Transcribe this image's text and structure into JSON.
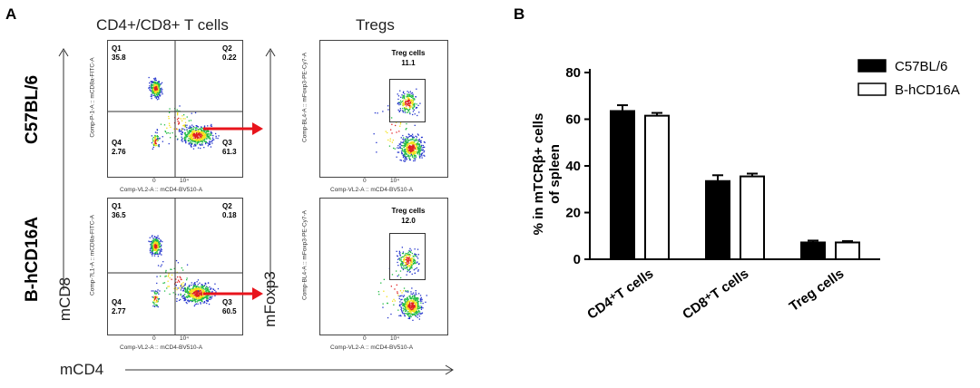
{
  "panel_a": {
    "letter": "A",
    "col_title_left": "CD4+/CD8+ T cells",
    "col_title_right": "Tregs",
    "row_labels": [
      "C57BL/6",
      "B-hCD16A"
    ],
    "axis_y_label": "mCD8",
    "axis_x_label": "mCD4",
    "treg_axis_label": "mFoxp3",
    "plots": [
      {
        "y_axis_title": "Comp-P-1-A :: mCD8a-FITC-A",
        "x_axis_title": "Comp-VL2-A :: mCD4-BV510-A",
        "quadrants": {
          "q1": {
            "name": "Q1",
            "value": "35.8"
          },
          "q2": {
            "name": "Q2",
            "value": "0.22"
          },
          "q3": {
            "name": "Q3",
            "value": "61.3"
          },
          "q4": {
            "name": "Q4",
            "value": "2.76"
          }
        }
      },
      {
        "y_axis_title": "Comp-?L1-A :: mCD8a-FITC-A",
        "x_axis_title": "Comp-VL2-A :: mCD4-BV510-A",
        "quadrants": {
          "q1": {
            "name": "Q1",
            "value": "36.5"
          },
          "q2": {
            "name": "Q2",
            "value": "0.18"
          },
          "q3": {
            "name": "Q3",
            "value": "60.5"
          },
          "q4": {
            "name": "Q4",
            "value": "2.77"
          }
        }
      }
    ],
    "treg_plots": [
      {
        "y_axis_title": "Comp-BL4-A :: mFoxp3-PE-Cy7-A",
        "x_axis_title": "Comp-VL2-A :: mCD4-BV510-A",
        "gate_name": "Treg cells",
        "gate_value": "11.1"
      },
      {
        "y_axis_title": "Comp-BL4-A :: mFoxp3-PE-Cy7-A",
        "x_axis_title": "Comp-VL2-A :: mCD4-BV510-A",
        "gate_name": "Treg cells",
        "gate_value": "12.0"
      }
    ],
    "y_ticks": [
      "10⁵",
      "10⁴",
      "10³",
      "0",
      "-10³"
    ],
    "x_ticks": [
      "0",
      "10⁴"
    ],
    "colors": {
      "arrow": "#e8141c",
      "dot_blue": "#2233cc",
      "dot_green": "#22bb44",
      "dot_yellow": "#f2e21a",
      "dot_red": "#e02020"
    }
  },
  "panel_b": {
    "letter": "B",
    "chart_data": {
      "type": "bar",
      "categories": [
        "CD4⁺T cells",
        "CD8⁺T cells",
        "Treg cells"
      ],
      "series": [
        {
          "name": "C57BL/6",
          "values": [
            63.5,
            33.5,
            7.2
          ],
          "errors": [
            2.5,
            2.5,
            0.8
          ],
          "color": "#000000"
        },
        {
          "name": "B-hCD16A",
          "values": [
            61.5,
            35.5,
            7.2
          ],
          "errors": [
            1.2,
            1.2,
            0.6
          ],
          "color": "#ffffff"
        }
      ],
      "ylabel": "% in mTCRβ+ cells of spleen",
      "ylabel_line1": "% in mTCRβ+ cells",
      "ylabel_line2": "of spleen",
      "xlabel": "",
      "ylim": [
        0,
        80
      ],
      "yticks": [
        0,
        20,
        40,
        60,
        80
      ],
      "legend_position": "top-right"
    }
  }
}
